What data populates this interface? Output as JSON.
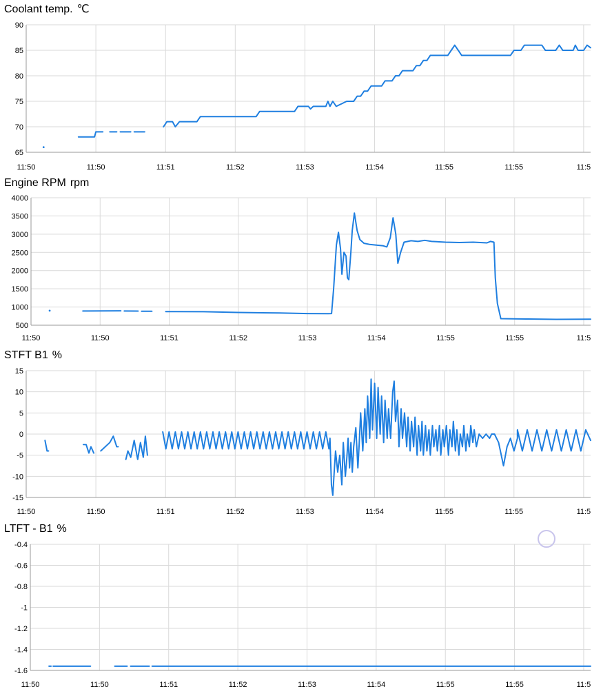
{
  "colors": {
    "series": "#1f7fe0",
    "grid": "#d9d9d9",
    "axis": "#9a9a9a"
  },
  "chart_data": [
    {
      "type": "line",
      "title": "Coolant temp.",
      "unit": "℃",
      "ylim": [
        65,
        90
      ],
      "yticks": [
        "90",
        "85",
        "80",
        "75",
        "70",
        "65"
      ],
      "xticks": [
        "11:50",
        "11:50",
        "11:51",
        "11:52",
        "11:53",
        "11:54",
        "11:55",
        "11:55",
        "11:5"
      ],
      "xlim": [
        0,
        8.1
      ],
      "grid": true,
      "series": [
        {
          "segments": [
            [
              [
                0.25,
                66
              ]
            ],
            [
              [
                0.75,
                68
              ],
              [
                0.98,
                68
              ],
              [
                1.0,
                69
              ],
              [
                1.1,
                69
              ]
            ],
            [
              [
                1.2,
                69
              ],
              [
                1.3,
                69
              ]
            ],
            [
              [
                1.35,
                69
              ],
              [
                1.5,
                69
              ]
            ],
            [
              [
                1.55,
                69
              ],
              [
                1.7,
                69
              ]
            ],
            [
              [
                1.97,
                70
              ],
              [
                2.02,
                71
              ],
              [
                2.1,
                71
              ],
              [
                2.14,
                70
              ],
              [
                2.2,
                71
              ],
              [
                2.45,
                71
              ],
              [
                2.5,
                72
              ],
              [
                3.3,
                72
              ],
              [
                3.35,
                73
              ],
              [
                3.85,
                73
              ],
              [
                3.9,
                74
              ],
              [
                4.05,
                74
              ],
              [
                4.08,
                73.5
              ],
              [
                4.12,
                74
              ],
              [
                4.3,
                74
              ],
              [
                4.33,
                75
              ],
              [
                4.36,
                74
              ],
              [
                4.4,
                75
              ],
              [
                4.45,
                74
              ],
              [
                4.6,
                75
              ],
              [
                4.7,
                75
              ],
              [
                4.75,
                76
              ],
              [
                4.8,
                76
              ],
              [
                4.85,
                77
              ],
              [
                4.9,
                77
              ],
              [
                4.95,
                78
              ],
              [
                5.1,
                78
              ],
              [
                5.15,
                79
              ],
              [
                5.25,
                79
              ],
              [
                5.3,
                80
              ],
              [
                5.35,
                80
              ],
              [
                5.4,
                81
              ],
              [
                5.55,
                81
              ],
              [
                5.6,
                82
              ],
              [
                5.65,
                82
              ],
              [
                5.7,
                83
              ],
              [
                5.75,
                83
              ],
              [
                5.8,
                84
              ],
              [
                6.05,
                84
              ],
              [
                6.1,
                85
              ],
              [
                6.15,
                86
              ],
              [
                6.2,
                85
              ],
              [
                6.25,
                84
              ],
              [
                6.95,
                84
              ],
              [
                7.0,
                85
              ],
              [
                7.1,
                85
              ],
              [
                7.15,
                86
              ],
              [
                7.4,
                86
              ],
              [
                7.45,
                85
              ],
              [
                7.6,
                85
              ],
              [
                7.65,
                86
              ],
              [
                7.7,
                85
              ],
              [
                7.85,
                85
              ],
              [
                7.88,
                86
              ],
              [
                7.92,
                85
              ],
              [
                8.0,
                85
              ],
              [
                8.05,
                86
              ],
              [
                8.1,
                85.5
              ]
            ]
          ]
        }
      ]
    },
    {
      "type": "line",
      "title": "Engine RPM",
      "unit": "rpm",
      "ylim": [
        500,
        4000
      ],
      "yticks": [
        "4000",
        "3500",
        "3000",
        "2500",
        "2000",
        "1500",
        "1000",
        "500"
      ],
      "xticks": [
        "11:50",
        "11:50",
        "11:51",
        "11:52",
        "11:53",
        "11:54",
        "11:55",
        "11:55",
        "11:5"
      ],
      "xlim": [
        0,
        8.1
      ],
      "grid": true,
      "series": [
        {
          "segments": [
            [
              [
                0.27,
                900
              ]
            ],
            [
              [
                0.75,
                890
              ],
              [
                1.3,
                895
              ]
            ],
            [
              [
                1.35,
                890
              ],
              [
                1.55,
                888
              ]
            ],
            [
              [
                1.6,
                885
              ],
              [
                1.75,
                885
              ]
            ],
            [
              [
                1.95,
                875
              ],
              [
                2.5,
                870
              ],
              [
                3.0,
                850
              ],
              [
                3.6,
                835
              ],
              [
                4.0,
                820
              ],
              [
                4.3,
                815
              ],
              [
                4.35,
                820
              ],
              [
                4.38,
                1500
              ],
              [
                4.42,
                2700
              ],
              [
                4.45,
                3050
              ],
              [
                4.48,
                2600
              ],
              [
                4.5,
                1900
              ],
              [
                4.53,
                2500
              ],
              [
                4.56,
                2400
              ],
              [
                4.58,
                1800
              ],
              [
                4.6,
                1750
              ],
              [
                4.63,
                2500
              ],
              [
                4.65,
                3100
              ],
              [
                4.68,
                3580
              ],
              [
                4.72,
                3100
              ],
              [
                4.76,
                2850
              ],
              [
                4.82,
                2750
              ],
              [
                4.9,
                2720
              ],
              [
                5.0,
                2700
              ],
              [
                5.1,
                2680
              ],
              [
                5.15,
                2650
              ],
              [
                5.2,
                2900
              ],
              [
                5.24,
                3450
              ],
              [
                5.28,
                3000
              ],
              [
                5.31,
                2200
              ],
              [
                5.35,
                2500
              ],
              [
                5.4,
                2780
              ],
              [
                5.5,
                2820
              ],
              [
                5.6,
                2800
              ],
              [
                5.7,
                2830
              ],
              [
                5.8,
                2800
              ],
              [
                6.0,
                2780
              ],
              [
                6.2,
                2770
              ],
              [
                6.4,
                2780
              ],
              [
                6.6,
                2760
              ],
              [
                6.65,
                2800
              ],
              [
                6.7,
                2780
              ],
              [
                6.72,
                1800
              ],
              [
                6.75,
                1100
              ],
              [
                6.8,
                680
              ],
              [
                7.2,
                670
              ],
              [
                7.6,
                660
              ],
              [
                8.1,
                665
              ]
            ]
          ]
        }
      ]
    },
    {
      "type": "line",
      "title": "STFT B1",
      "unit": "%",
      "ylim": [
        -15,
        15
      ],
      "yticks": [
        "15",
        "10",
        "5",
        "0",
        "-5",
        "-10",
        "-15"
      ],
      "xticks": [
        "11:50",
        "11:50",
        "11:51",
        "11:52",
        "11:53",
        "11:54",
        "11:55",
        "11:55",
        "11:5"
      ],
      "xlim": [
        0,
        8.1
      ],
      "grid": true,
      "series": [
        {
          "segments": [
            [
              [
                0.27,
                -1.5
              ],
              [
                0.3,
                -4
              ],
              [
                0.32,
                -4
              ]
            ],
            [
              [
                0.82,
                -2.5
              ],
              [
                0.86,
                -2.5
              ],
              [
                0.9,
                -4.5
              ],
              [
                0.93,
                -3
              ],
              [
                0.97,
                -4.5
              ]
            ],
            [
              [
                1.07,
                -4
              ],
              [
                1.2,
                -2
              ],
              [
                1.25,
                -0.5
              ],
              [
                1.3,
                -3
              ],
              [
                1.32,
                -3
              ]
            ],
            [
              [
                1.43,
                -6
              ],
              [
                1.46,
                -4
              ],
              [
                1.5,
                -5.5
              ],
              [
                1.55,
                -1.5
              ],
              [
                1.6,
                -6
              ],
              [
                1.64,
                -2
              ],
              [
                1.68,
                -5.5
              ],
              [
                1.71,
                -0.5
              ],
              [
                1.74,
                -5
              ]
            ]
          ]
        }
      ]
    },
    {
      "type": "line",
      "title": "LTFT - B1",
      "unit": "%",
      "ylim": [
        -1.6,
        -0.4
      ],
      "yticks": [
        "-0.4",
        "-0.6",
        "-0.8",
        "-1",
        "-1.2",
        "-1.4",
        "-1.6"
      ],
      "xticks": [
        "11:50",
        "11:50",
        "11:51",
        "11:52",
        "11:53",
        "11:54",
        "11:55",
        "11:55",
        "11:5"
      ],
      "xlim": [
        0,
        8.1
      ],
      "grid": true,
      "series": [
        {
          "segments": [
            [
              [
                0.27,
                -1.56
              ],
              [
                0.3,
                -1.56
              ]
            ],
            [
              [
                0.33,
                -1.56
              ],
              [
                0.87,
                -1.56
              ]
            ],
            [
              [
                1.22,
                -1.56
              ],
              [
                1.4,
                -1.56
              ]
            ],
            [
              [
                1.45,
                -1.56
              ],
              [
                1.72,
                -1.56
              ]
            ],
            [
              [
                1.76,
                -1.56
              ],
              [
                8.1,
                -1.56
              ]
            ]
          ]
        }
      ]
    }
  ]
}
